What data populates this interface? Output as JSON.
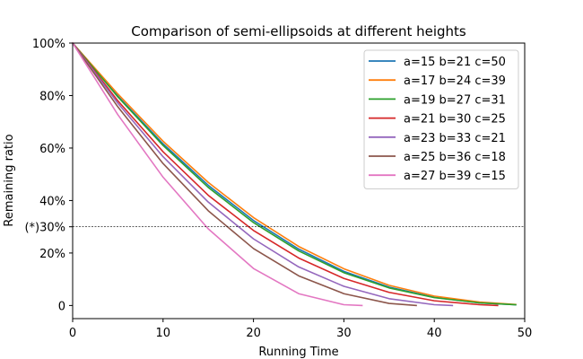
{
  "chart_data": {
    "type": "line",
    "title": "Comparison of semi-ellipsoids at different heights",
    "xlabel": "Running Time",
    "ylabel": "Remaining ratio",
    "xlim": [
      0,
      50
    ],
    "ylim": [
      -5,
      100
    ],
    "x_ticks": [
      0,
      10,
      20,
      30,
      40,
      50
    ],
    "x_tick_labels": [
      "0",
      "10",
      "20",
      "30",
      "40",
      "50"
    ],
    "y_ticks": [
      0,
      20,
      30,
      40,
      60,
      80,
      100
    ],
    "y_tick_labels": [
      "0",
      "20%",
      "(*)30%",
      "40%",
      "60%",
      "80%",
      "100%"
    ],
    "reference_line": {
      "y": 30,
      "style": "dashed",
      "color": "#000000"
    },
    "grid": false,
    "legend_position": "top-right",
    "series": [
      {
        "name": "a=15 b=21 c=50",
        "color": "#1f77b4",
        "x": [
          0,
          5,
          10,
          15,
          20,
          25,
          30,
          35,
          40,
          45,
          49
        ],
        "y": [
          100,
          79.8,
          61.6,
          45.8,
          32.4,
          21.5,
          13.0,
          7.0,
          3.1,
          1.0,
          0.3
        ]
      },
      {
        "name": "a=17 b=24 c=39",
        "color": "#ff7f0e",
        "x": [
          0,
          5,
          10,
          15,
          20,
          25,
          30,
          35,
          40,
          45,
          49
        ],
        "y": [
          100,
          80.6,
          62.6,
          46.9,
          33.5,
          22.5,
          14.0,
          7.7,
          3.6,
          1.3,
          0.4
        ]
      },
      {
        "name": "a=19 b=27 c=31",
        "color": "#2ca02c",
        "x": [
          0,
          5,
          10,
          15,
          20,
          25,
          30,
          35,
          40,
          45,
          49
        ],
        "y": [
          100,
          79.5,
          61.0,
          45.0,
          31.6,
          20.8,
          12.5,
          6.7,
          3.0,
          1.0,
          0.3
        ]
      },
      {
        "name": "a=21 b=30 c=25",
        "color": "#d62728",
        "x": [
          0,
          5,
          10,
          15,
          20,
          25,
          30,
          35,
          40,
          45,
          47
        ],
        "y": [
          100,
          78.0,
          58.6,
          42.0,
          28.6,
          18.1,
          10.3,
          5.0,
          1.8,
          0.3,
          0
        ]
      },
      {
        "name": "a=23 b=33 c=21",
        "color": "#9467bd",
        "x": [
          0,
          5,
          10,
          15,
          20,
          25,
          30,
          35,
          40,
          42
        ],
        "y": [
          100,
          77.1,
          56.7,
          39.4,
          25.4,
          14.7,
          7.3,
          2.6,
          0.3,
          0
        ]
      },
      {
        "name": "a=25 b=36 c=18",
        "color": "#8c564b",
        "x": [
          0,
          5,
          10,
          15,
          20,
          25,
          30,
          35,
          38
        ],
        "y": [
          100,
          75.7,
          54.1,
          36.1,
          21.7,
          11.3,
          4.5,
          0.8,
          0
        ]
      },
      {
        "name": "a=27 b=39 c=15",
        "color": "#e377c2",
        "x": [
          0,
          5,
          10,
          15,
          20,
          25,
          30,
          32
        ],
        "y": [
          100,
          72.7,
          48.9,
          29.2,
          14.1,
          4.5,
          0.3,
          0
        ]
      }
    ]
  }
}
